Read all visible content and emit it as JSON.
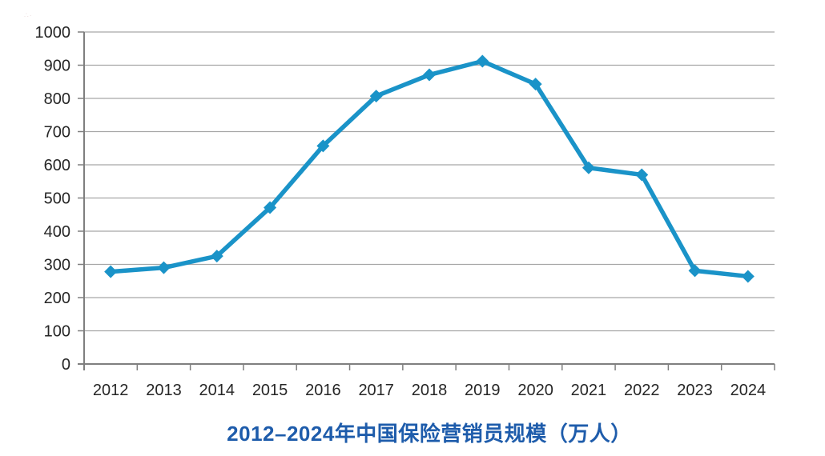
{
  "watermark": {
    "text": "∴·"
  },
  "chart_data": {
    "type": "line",
    "title": "2012–2024年中国保险营销员规模（万人）",
    "title_color": "#1e5cab",
    "categories": [
      "2012",
      "2013",
      "2014",
      "2015",
      "2016",
      "2017",
      "2018",
      "2019",
      "2020",
      "2021",
      "2022",
      "2023",
      "2024"
    ],
    "series": [
      {
        "name": "保险营销员规模（万人）",
        "values": [
          278,
          290,
          325,
          471,
          657,
          807,
          871,
          912,
          843,
          591,
          570,
          281,
          264
        ]
      }
    ],
    "xlabel": "",
    "ylabel": "",
    "ylim": [
      0,
      1000
    ],
    "ytick_interval": 100,
    "yticks": [
      "0",
      "100",
      "200",
      "300",
      "400",
      "500",
      "600",
      "700",
      "800",
      "900",
      "1000"
    ],
    "grid": true,
    "legend_position": "none",
    "line_color": "#1a93c8",
    "marker": "diamond",
    "axis_color": "#7f7f7f",
    "grid_color": "#a6a6a6",
    "tick_label_color": "#262626"
  }
}
